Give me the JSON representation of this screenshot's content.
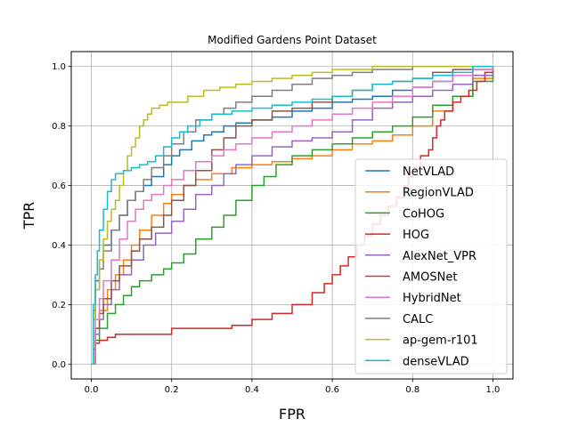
{
  "chart_data": {
    "type": "line",
    "title": "Modified Gardens Point Dataset",
    "xlabel": "FPR",
    "ylabel": "TPR",
    "xlim": [
      -0.05,
      1.05
    ],
    "ylim": [
      -0.05,
      1.05
    ],
    "xticks": [
      0.0,
      0.2,
      0.4,
      0.6,
      0.8,
      1.0
    ],
    "yticks": [
      0.0,
      0.2,
      0.4,
      0.6,
      0.8,
      1.0
    ],
    "xtick_labels": [
      "0.0",
      "0.2",
      "0.4",
      "0.6",
      "0.8",
      "1.0"
    ],
    "ytick_labels": [
      "0.0",
      "0.2",
      "0.4",
      "0.6",
      "0.8",
      "1.0"
    ],
    "grid": true,
    "legend_position": "lower-right",
    "series": [
      {
        "name": "NetVLAD",
        "color": "#1f77b4",
        "x": [
          0,
          0.005,
          0.01,
          0.02,
          0.03,
          0.05,
          0.07,
          0.09,
          0.11,
          0.13,
          0.15,
          0.18,
          0.2,
          0.22,
          0.25,
          0.28,
          0.3,
          0.33,
          0.36,
          0.4,
          0.45,
          0.5,
          0.55,
          0.6,
          0.65,
          0.7,
          0.75,
          0.8,
          0.85,
          0.9,
          0.95,
          1.0
        ],
        "y": [
          0,
          0.18,
          0.28,
          0.35,
          0.4,
          0.45,
          0.5,
          0.55,
          0.58,
          0.6,
          0.63,
          0.67,
          0.7,
          0.72,
          0.75,
          0.77,
          0.78,
          0.8,
          0.81,
          0.82,
          0.83,
          0.85,
          0.86,
          0.88,
          0.89,
          0.9,
          0.92,
          0.93,
          0.95,
          0.97,
          0.99,
          1.0
        ]
      },
      {
        "name": "RegionVLAD",
        "color": "#ff7f0e",
        "x": [
          0,
          0.01,
          0.02,
          0.04,
          0.06,
          0.08,
          0.1,
          0.12,
          0.15,
          0.18,
          0.2,
          0.23,
          0.26,
          0.3,
          0.35,
          0.4,
          0.45,
          0.5,
          0.55,
          0.6,
          0.65,
          0.7,
          0.75,
          0.8,
          0.85,
          0.9,
          0.95,
          1.0
        ],
        "y": [
          0,
          0.12,
          0.18,
          0.25,
          0.3,
          0.35,
          0.4,
          0.45,
          0.5,
          0.54,
          0.57,
          0.6,
          0.62,
          0.64,
          0.66,
          0.67,
          0.68,
          0.69,
          0.7,
          0.72,
          0.74,
          0.75,
          0.77,
          0.8,
          0.85,
          0.9,
          0.96,
          1.0
        ]
      },
      {
        "name": "CoHOG",
        "color": "#2ca02c",
        "x": [
          0,
          0.01,
          0.02,
          0.04,
          0.06,
          0.08,
          0.1,
          0.12,
          0.15,
          0.18,
          0.2,
          0.23,
          0.26,
          0.3,
          0.33,
          0.36,
          0.4,
          0.43,
          0.46,
          0.5,
          0.55,
          0.6,
          0.65,
          0.7,
          0.75,
          0.8,
          0.85,
          0.9,
          0.95,
          1.0
        ],
        "y": [
          0,
          0.08,
          0.12,
          0.17,
          0.2,
          0.23,
          0.26,
          0.28,
          0.3,
          0.32,
          0.34,
          0.37,
          0.42,
          0.46,
          0.5,
          0.55,
          0.6,
          0.63,
          0.67,
          0.7,
          0.72,
          0.74,
          0.76,
          0.78,
          0.8,
          0.83,
          0.87,
          0.9,
          0.95,
          1.0
        ]
      },
      {
        "name": "HOG",
        "color": "#d62728",
        "x": [
          0,
          0.005,
          0.01,
          0.02,
          0.04,
          0.06,
          0.1,
          0.15,
          0.19,
          0.2,
          0.3,
          0.35,
          0.4,
          0.45,
          0.5,
          0.55,
          0.58,
          0.6,
          0.62,
          0.64,
          0.66,
          0.68,
          0.7,
          0.72,
          0.74,
          0.76,
          0.78,
          0.79,
          0.8,
          0.82,
          0.84,
          0.85,
          0.86,
          0.87,
          0.88,
          0.9,
          0.92,
          0.94,
          0.96,
          0.98,
          1.0
        ],
        "y": [
          0,
          0.05,
          0.07,
          0.08,
          0.09,
          0.1,
          0.1,
          0.1,
          0.1,
          0.12,
          0.12,
          0.13,
          0.15,
          0.17,
          0.2,
          0.24,
          0.27,
          0.3,
          0.33,
          0.36,
          0.4,
          0.43,
          0.47,
          0.5,
          0.53,
          0.56,
          0.6,
          0.63,
          0.66,
          0.7,
          0.72,
          0.76,
          0.8,
          0.82,
          0.85,
          0.88,
          0.9,
          0.92,
          0.95,
          0.98,
          1.0
        ]
      },
      {
        "name": "AlexNet_VPR",
        "color": "#9467bd",
        "x": [
          0,
          0.01,
          0.02,
          0.03,
          0.05,
          0.07,
          0.1,
          0.13,
          0.16,
          0.2,
          0.23,
          0.26,
          0.3,
          0.33,
          0.36,
          0.4,
          0.45,
          0.5,
          0.55,
          0.6,
          0.65,
          0.7,
          0.75,
          0.8,
          0.85,
          0.9,
          0.95,
          1.0
        ],
        "y": [
          0,
          0.1,
          0.15,
          0.2,
          0.25,
          0.3,
          0.35,
          0.4,
          0.44,
          0.48,
          0.52,
          0.57,
          0.6,
          0.64,
          0.67,
          0.7,
          0.73,
          0.75,
          0.76,
          0.78,
          0.82,
          0.86,
          0.88,
          0.9,
          0.92,
          0.94,
          0.97,
          1.0
        ]
      },
      {
        "name": "AMOSNet",
        "color": "#8c564b",
        "x": [
          0,
          0.01,
          0.02,
          0.03,
          0.05,
          0.07,
          0.1,
          0.12,
          0.15,
          0.18,
          0.2,
          0.23,
          0.26,
          0.3,
          0.33,
          0.36,
          0.4,
          0.45,
          0.5,
          0.55,
          0.6,
          0.65,
          0.7,
          0.75,
          0.8,
          0.85,
          0.9,
          0.95,
          1.0
        ],
        "y": [
          0,
          0.12,
          0.17,
          0.22,
          0.28,
          0.33,
          0.38,
          0.42,
          0.46,
          0.5,
          0.55,
          0.6,
          0.65,
          0.72,
          0.76,
          0.8,
          0.82,
          0.85,
          0.86,
          0.88,
          0.9,
          0.92,
          0.94,
          0.95,
          0.96,
          0.98,
          0.99,
          1.0,
          1.0
        ]
      },
      {
        "name": "HybridNet",
        "color": "#e377c2",
        "x": [
          0,
          0.01,
          0.02,
          0.03,
          0.05,
          0.07,
          0.09,
          0.11,
          0.13,
          0.15,
          0.18,
          0.2,
          0.23,
          0.26,
          0.3,
          0.33,
          0.36,
          0.4,
          0.45,
          0.5,
          0.55,
          0.6,
          0.65,
          0.7,
          0.75,
          0.8,
          0.85,
          0.9,
          0.95,
          1.0
        ],
        "y": [
          0,
          0.15,
          0.22,
          0.28,
          0.35,
          0.42,
          0.48,
          0.52,
          0.55,
          0.57,
          0.6,
          0.62,
          0.65,
          0.68,
          0.7,
          0.72,
          0.74,
          0.76,
          0.78,
          0.8,
          0.82,
          0.84,
          0.86,
          0.88,
          0.9,
          0.93,
          0.95,
          0.97,
          0.99,
          1.0
        ]
      },
      {
        "name": "CALC",
        "color": "#7f7f7f",
        "x": [
          0,
          0.005,
          0.01,
          0.02,
          0.03,
          0.05,
          0.07,
          0.09,
          0.11,
          0.13,
          0.15,
          0.18,
          0.2,
          0.23,
          0.26,
          0.3,
          0.33,
          0.36,
          0.4,
          0.45,
          0.5,
          0.55,
          0.6,
          0.65,
          0.7,
          0.75,
          0.8,
          0.85,
          0.9,
          0.95,
          1.0
        ],
        "y": [
          0,
          0.15,
          0.25,
          0.32,
          0.38,
          0.45,
          0.5,
          0.55,
          0.58,
          0.62,
          0.66,
          0.7,
          0.74,
          0.78,
          0.82,
          0.84,
          0.86,
          0.88,
          0.9,
          0.92,
          0.94,
          0.96,
          0.97,
          0.98,
          0.99,
          0.99,
          1.0,
          1.0,
          1.0,
          1.0,
          1.0
        ]
      },
      {
        "name": "ap-gem-r101",
        "color": "#bcbd22",
        "x": [
          0,
          0.005,
          0.01,
          0.02,
          0.03,
          0.04,
          0.05,
          0.06,
          0.07,
          0.08,
          0.09,
          0.1,
          0.11,
          0.12,
          0.13,
          0.14,
          0.15,
          0.17,
          0.19,
          0.21,
          0.24,
          0.28,
          0.32,
          0.36,
          0.4,
          0.45,
          0.5,
          0.55,
          0.6,
          0.65,
          0.7,
          0.75,
          0.8,
          0.85,
          0.9,
          0.95,
          1.0
        ],
        "y": [
          0,
          0.15,
          0.25,
          0.35,
          0.42,
          0.48,
          0.52,
          0.55,
          0.6,
          0.65,
          0.7,
          0.73,
          0.76,
          0.8,
          0.82,
          0.84,
          0.86,
          0.87,
          0.88,
          0.88,
          0.9,
          0.92,
          0.93,
          0.94,
          0.95,
          0.96,
          0.97,
          0.98,
          0.99,
          0.99,
          1.0,
          1.0,
          1.0,
          1.0,
          1.0,
          1.0,
          1.0
        ]
      },
      {
        "name": "denseVLAD",
        "color": "#17becf",
        "x": [
          0,
          0.005,
          0.01,
          0.015,
          0.02,
          0.03,
          0.04,
          0.05,
          0.06,
          0.08,
          0.1,
          0.12,
          0.14,
          0.16,
          0.18,
          0.2,
          0.22,
          0.24,
          0.27,
          0.3,
          0.35,
          0.4,
          0.45,
          0.5,
          0.55,
          0.6,
          0.65,
          0.7,
          0.75,
          0.8,
          0.85,
          0.9,
          0.95,
          1.0
        ],
        "y": [
          0,
          0.2,
          0.3,
          0.38,
          0.45,
          0.52,
          0.58,
          0.62,
          0.64,
          0.65,
          0.66,
          0.67,
          0.68,
          0.7,
          0.73,
          0.76,
          0.78,
          0.8,
          0.82,
          0.84,
          0.85,
          0.86,
          0.87,
          0.88,
          0.89,
          0.9,
          0.92,
          0.94,
          0.95,
          0.96,
          0.97,
          0.98,
          1.0,
          1.0
        ]
      }
    ]
  }
}
